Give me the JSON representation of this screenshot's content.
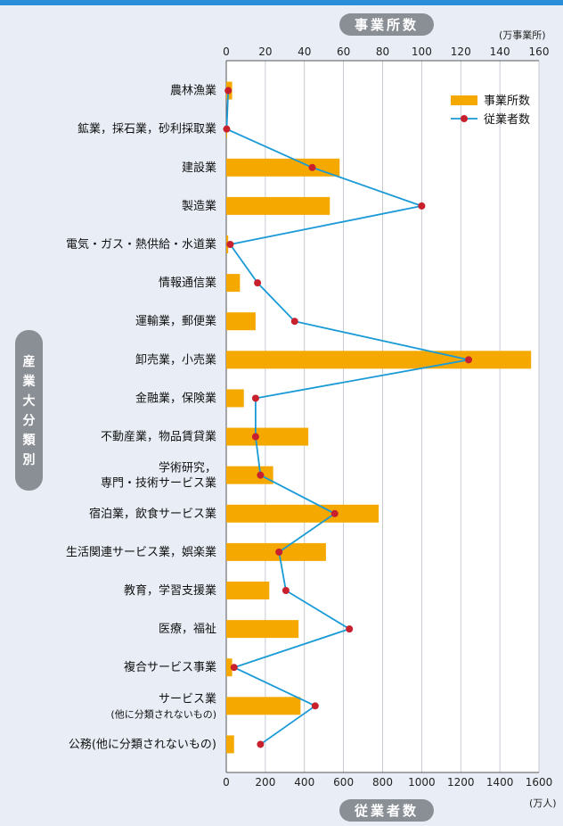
{
  "header": {
    "top_axis_title": "事業所数",
    "top_axis_unit": "(万事業所)",
    "bottom_axis_title": "従業者数",
    "bottom_axis_unit": "(万人)",
    "side_title": [
      "産",
      "業",
      "大",
      "分",
      "類",
      "別"
    ]
  },
  "colors": {
    "bar": "#f5a800",
    "line": "#1a9ad6",
    "marker": "#c8202d",
    "grid": "#b9bec6"
  },
  "chart_data": {
    "type": "bar",
    "orientation": "horizontal",
    "categories": [
      [
        "農林漁業"
      ],
      [
        "鉱業，採石業，砂利採取業"
      ],
      [
        "建設業"
      ],
      [
        "製造業"
      ],
      [
        "電気・ガス・熱供給・水道業"
      ],
      [
        "情報通信業"
      ],
      [
        "運輸業，郵便業"
      ],
      [
        "卸売業，小売業"
      ],
      [
        "金融業，保険業"
      ],
      [
        "不動産業，物品賃貸業"
      ],
      [
        "学術研究，",
        "専門・技術サービス業"
      ],
      [
        "宿泊業，飲食サービス業"
      ],
      [
        "生活関連サービス業，娯楽業"
      ],
      [
        "教育，学習支援業"
      ],
      [
        "医療，福祉"
      ],
      [
        "複合サービス事業"
      ],
      [
        "サービス業",
        "(他に分類されないもの)"
      ],
      [
        "公務(他に分類されないもの)"
      ]
    ],
    "series": [
      {
        "name": "事業所数",
        "type": "bar",
        "axis": "top",
        "unit": "万事業所",
        "values": [
          3,
          0.2,
          58,
          53,
          1,
          7,
          15,
          156,
          9,
          42,
          24,
          78,
          51,
          22,
          37,
          3,
          38,
          4
        ]
      },
      {
        "name": "従業者数",
        "type": "line",
        "axis": "bottom",
        "unit": "万人",
        "values": [
          10,
          2,
          440,
          1000,
          20,
          160,
          350,
          1240,
          150,
          150,
          175,
          555,
          270,
          305,
          630,
          40,
          455,
          175
        ]
      }
    ],
    "top_axis": {
      "min": 0,
      "max": 160,
      "ticks": [
        "0",
        "20",
        "40",
        "60",
        "80",
        "100",
        "120",
        "140",
        "160"
      ]
    },
    "bottom_axis": {
      "min": 0,
      "max": 1600,
      "ticks": [
        "0",
        "200",
        "400",
        "600",
        "800",
        "1000",
        "1200",
        "1400",
        "1600"
      ]
    },
    "legend": [
      "事業所数",
      "従業者数"
    ],
    "legend_position": "top-right",
    "grid": true
  }
}
